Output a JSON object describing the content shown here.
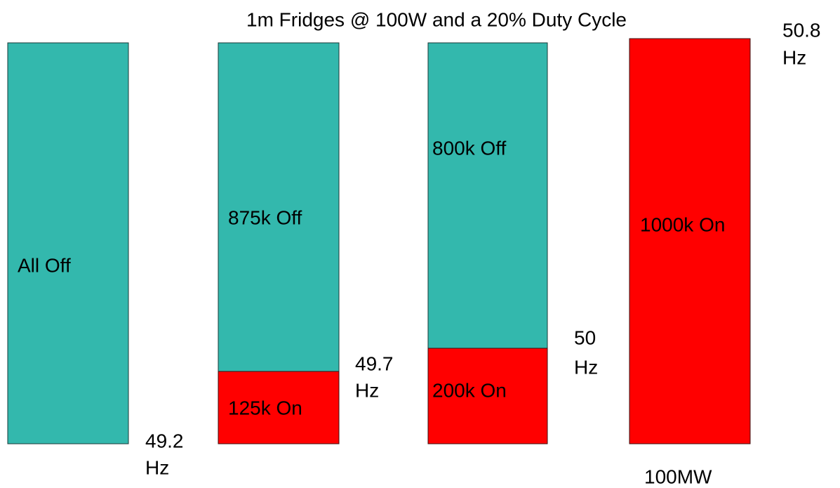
{
  "title": "1m Fridges @ 100W and a 20% Duty Cycle",
  "columns": [
    {
      "segments": [
        "All Off"
      ],
      "frequency": [
        "49.2",
        "Hz"
      ]
    },
    {
      "segments": [
        "875k Off",
        "125k On"
      ],
      "frequency": [
        "49.7",
        "Hz"
      ]
    },
    {
      "segments": [
        "800k Off",
        "200k On"
      ],
      "frequency": [
        "50",
        "Hz"
      ]
    },
    {
      "segments": [
        "1000k On"
      ],
      "frequency": [
        "50.8",
        "Hz"
      ]
    }
  ],
  "footer": "100MW"
}
